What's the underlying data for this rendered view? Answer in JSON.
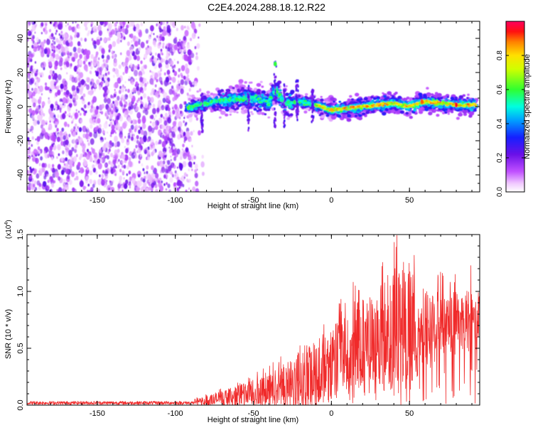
{
  "title": "C2E4.2024.288.18.12.R22",
  "colors": {
    "snr_line": "#f02a2a",
    "scatter_noise": "#7a1de0",
    "background": "#ffffff"
  },
  "chart_data": [
    {
      "type": "heatmap",
      "title": "C2E4.2024.288.18.12.R22",
      "xlabel": "Height of straight line (km)",
      "ylabel": "Frequency (Hz)",
      "xlim": [
        -195,
        95
      ],
      "ylim": [
        -50,
        50
      ],
      "xticks": [
        -150,
        -100,
        -50,
        0,
        50
      ],
      "yticks": [
        -40,
        -20,
        0,
        20,
        40
      ],
      "xtick_labels": [
        "-150",
        "-100",
        "-50",
        "0",
        "50"
      ],
      "ytick_labels": [
        "-40",
        "-20",
        "0",
        "20",
        "40"
      ],
      "grid": false,
      "colorbar": {
        "label": "Normalized spectral amplitude",
        "range": [
          0,
          1
        ],
        "ticks": [
          0.0,
          0.2,
          0.4,
          0.6,
          0.8
        ],
        "tick_labels": [
          "0.0",
          "0.2",
          "0.4",
          "0.6",
          "0.8"
        ],
        "colormap": "rainbow (magenta-blue-cyan-green-yellow-red)"
      },
      "regions": [
        {
          "x_range": [
            -195,
            -82
          ],
          "y_range": [
            -50,
            50
          ],
          "description_value": "broadband noise, amplitude 0.1-0.3"
        },
        {
          "x_range": [
            -93,
            93
          ],
          "y_range": [
            -8,
            12
          ],
          "description_value": "signal band, amplitude 0.3-1.0"
        }
      ],
      "signal_center": [
        {
          "x": -93,
          "y": -1
        },
        {
          "x": -85,
          "y": 1
        },
        {
          "x": -75,
          "y": 3
        },
        {
          "x": -65,
          "y": 4
        },
        {
          "x": -55,
          "y": 5
        },
        {
          "x": -45,
          "y": 4
        },
        {
          "x": -40,
          "y": 2
        },
        {
          "x": -36,
          "y": 10
        },
        {
          "x": -30,
          "y": 2
        },
        {
          "x": -20,
          "y": 3
        },
        {
          "x": -10,
          "y": 1
        },
        {
          "x": 0,
          "y": -2
        },
        {
          "x": 10,
          "y": -1
        },
        {
          "x": 20,
          "y": 0
        },
        {
          "x": 30,
          "y": 1
        },
        {
          "x": 40,
          "y": 2
        },
        {
          "x": 50,
          "y": 0
        },
        {
          "x": 60,
          "y": 3
        },
        {
          "x": 70,
          "y": 2
        },
        {
          "x": 80,
          "y": 1
        },
        {
          "x": 93,
          "y": 1
        }
      ],
      "peaks": [
        {
          "x": -36,
          "y": 25,
          "amplitude": 0.6
        },
        {
          "x": 58,
          "y": 3,
          "amplitude": 0.9
        },
        {
          "x": 80,
          "y": 1,
          "amplitude": 0.95
        }
      ]
    },
    {
      "type": "line",
      "xlabel": "Height of straight line (km)",
      "ylabel": "SNR (10 * v/v)",
      "y_multiplier": "(x10",
      "y_multiplier_exp": "4",
      "y_multiplier_close": ")",
      "xlim": [
        -195,
        95
      ],
      "ylim": [
        0,
        1.5
      ],
      "xticks": [
        -150,
        -100,
        -50,
        0,
        50
      ],
      "yticks": [
        0.0,
        0.5,
        1.0,
        1.5
      ],
      "xtick_labels": [
        "-150",
        "-100",
        "-50",
        "0",
        "50"
      ],
      "ytick_labels": [
        "0.0",
        "0.5",
        "1.0",
        "1.5"
      ],
      "grid": false,
      "series": [
        {
          "color": "#f02a2a",
          "envelope_x": [
            -195,
            -150,
            -100,
            -85,
            -75,
            -60,
            -50,
            -40,
            -30,
            -20,
            -10,
            0,
            10,
            20,
            30,
            40,
            50,
            60,
            70,
            80,
            95
          ],
          "envelope_y": [
            0.03,
            0.03,
            0.03,
            0.06,
            0.11,
            0.17,
            0.22,
            0.28,
            0.38,
            0.5,
            0.58,
            0.68,
            0.82,
            0.95,
            1.05,
            1.2,
            1.22,
            1.05,
            0.95,
            1.0,
            1.0
          ],
          "mean_y": [
            0.02,
            0.02,
            0.02,
            0.03,
            0.05,
            0.08,
            0.1,
            0.13,
            0.17,
            0.22,
            0.28,
            0.35,
            0.45,
            0.55,
            0.62,
            0.68,
            0.7,
            0.68,
            0.68,
            0.72,
            0.75
          ]
        }
      ]
    }
  ]
}
